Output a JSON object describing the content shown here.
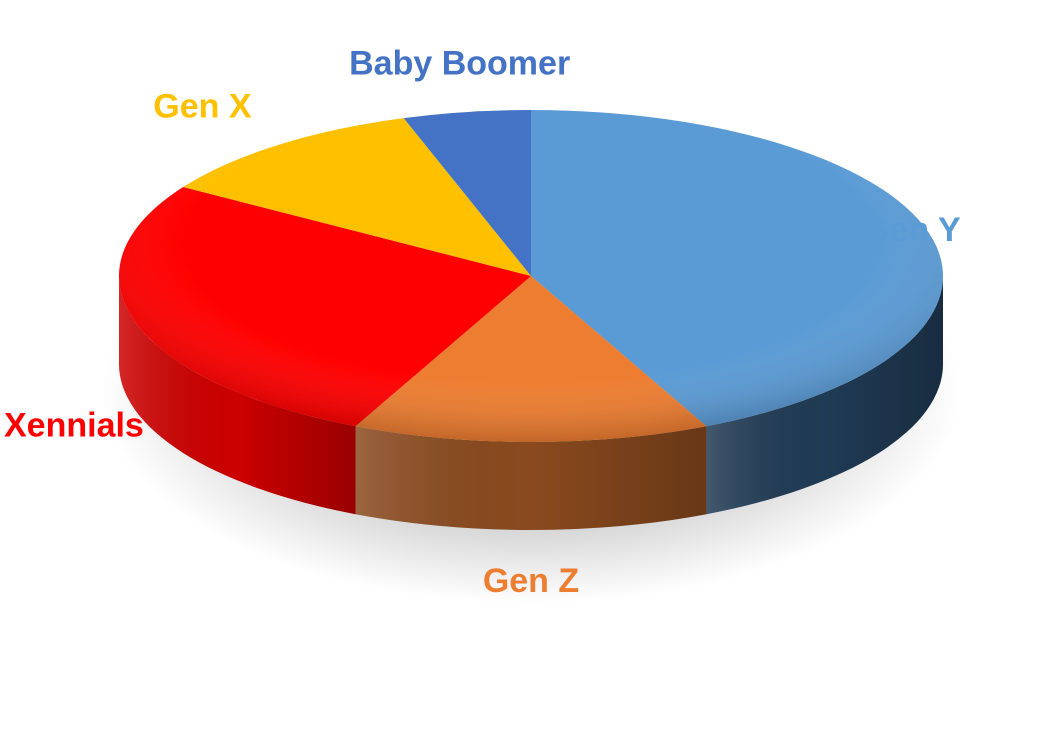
{
  "chart_data": {
    "type": "pie",
    "title": "",
    "slices": [
      {
        "label": "Gen Y",
        "value": 43,
        "color": "#5B9BD5",
        "side_color": "#203B55"
      },
      {
        "label": "Gen Z",
        "value": 14,
        "color": "#ED7D31",
        "side_color": "#8A4A1E"
      },
      {
        "label": "Xennials",
        "value": 27,
        "color": "#FF0000",
        "side_color": "#CC0000"
      },
      {
        "label": "Gen X",
        "value": 11,
        "color": "#FFC000",
        "side_color": "#B38600"
      },
      {
        "label": "Baby Boomer",
        "value": 5,
        "color": "#4472C4",
        "side_color": "#2A4A80"
      }
    ],
    "legend": "none",
    "style": "3d"
  }
}
